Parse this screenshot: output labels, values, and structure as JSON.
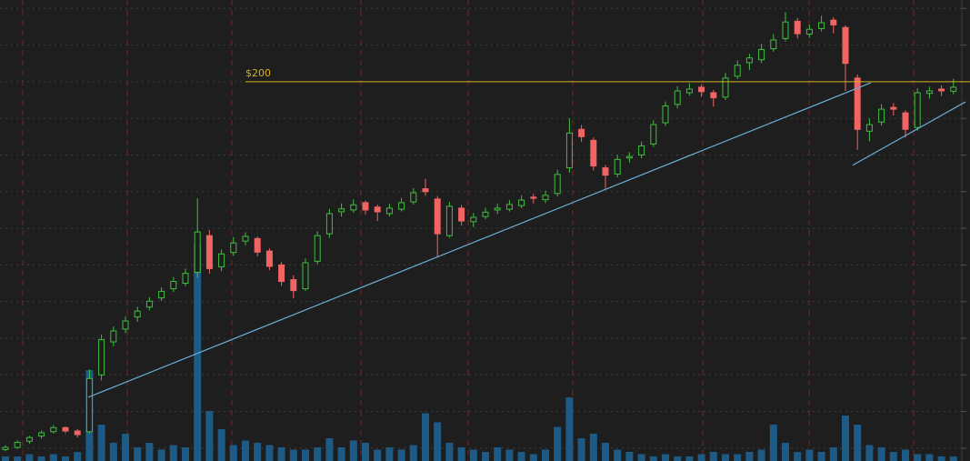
{
  "chart_data": {
    "type": "candlestick",
    "up_color": "#3fbf3f",
    "down_color": "#f06464",
    "volume_color": "#1d5a86",
    "ylim": [
      96.5,
      222.3
    ],
    "grid_lines": [
      100,
      110,
      120,
      130,
      140,
      150,
      160,
      170,
      180,
      190,
      200,
      210,
      220
    ],
    "volume_lim": [
      0,
      100
    ],
    "open": [
      99.6,
      100.2,
      101.9,
      103.3,
      104.5,
      105.6,
      104.7,
      104.5,
      120.0,
      129.0,
      132.5,
      135.8,
      138.5,
      141.0,
      143.5,
      145.0,
      148.0,
      158.0,
      149.5,
      153.4,
      156.5,
      157.2,
      153.8,
      150.0,
      146.0,
      143.5,
      151.0,
      158.5,
      164.5,
      165.0,
      167.0,
      165.8,
      164.0,
      165.2,
      167.2,
      170.8,
      168.0,
      158.0,
      165.5,
      161.8,
      163.2,
      165.0,
      165.2,
      166.2,
      168.5,
      167.8,
      169.5,
      176.5,
      187.0,
      184.0,
      176.5,
      174.8,
      179.2,
      180.0,
      183.0,
      188.8,
      193.8,
      197.0,
      198.5,
      197.0,
      195.8,
      201.5,
      205.2,
      206.0,
      209.0,
      211.8,
      216.5,
      213.0,
      214.5,
      216.8,
      214.8,
      201.0,
      186.5,
      189.0,
      193.0,
      191.5,
      187.5,
      196.8,
      198.0,
      197.4
    ],
    "high": [
      100.8,
      102.1,
      103.4,
      104.8,
      106.3,
      106.0,
      105.2,
      121.5,
      131.0,
      133.2,
      136.0,
      138.6,
      141.2,
      143.9,
      146.7,
      149.0,
      168.2,
      159.5,
      154.2,
      157.6,
      158.9,
      157.8,
      154.5,
      150.8,
      147.2,
      151.8,
      159.2,
      165.3,
      166.8,
      167.9,
      167.6,
      166.5,
      166.7,
      168.3,
      171.0,
      173.5,
      168.8,
      167.2,
      166.4,
      164.2,
      165.6,
      166.8,
      167.7,
      169.0,
      169.4,
      170.3,
      176.0,
      190.0,
      188.2,
      184.8,
      177.3,
      180.0,
      180.8,
      183.7,
      189.5,
      194.6,
      198.8,
      199.6,
      199.2,
      197.8,
      202.4,
      205.8,
      207.6,
      210.3,
      213.0,
      219.0,
      217.4,
      215.6,
      218.0,
      217.6,
      215.4,
      202.0,
      190.0,
      193.9,
      194.2,
      192.2,
      198.2,
      198.7,
      199.0,
      200.8
    ],
    "low": [
      99.2,
      99.8,
      101.2,
      102.6,
      104.0,
      104.1,
      102.9,
      104.0,
      118.5,
      127.8,
      131.4,
      134.5,
      137.6,
      140.2,
      142.6,
      144.2,
      146.5,
      147.6,
      148.3,
      152.5,
      155.4,
      152.4,
      148.6,
      144.3,
      140.9,
      142.8,
      150.2,
      157.4,
      163.2,
      164.3,
      163.8,
      162.0,
      163.2,
      164.6,
      166.5,
      168.9,
      152.0,
      157.4,
      160.8,
      160.3,
      162.5,
      163.9,
      164.6,
      165.5,
      166.8,
      167.0,
      168.7,
      175.2,
      183.6,
      175.8,
      170.8,
      173.9,
      177.9,
      179.1,
      182.2,
      187.9,
      192.7,
      196.2,
      195.9,
      193.2,
      195.0,
      200.7,
      203.2,
      205.1,
      208.2,
      211.0,
      211.8,
      212.0,
      213.7,
      213.2,
      197.5,
      181.4,
      183.8,
      188.0,
      190.8,
      184.8,
      186.6,
      195.4,
      196.1,
      196.6
    ],
    "close": [
      100.2,
      101.6,
      102.9,
      104.2,
      105.6,
      104.7,
      103.7,
      119.0,
      129.6,
      132.0,
      134.7,
      137.4,
      140.1,
      142.8,
      145.5,
      147.7,
      159.0,
      149.0,
      153.0,
      156.0,
      157.8,
      153.5,
      149.6,
      145.5,
      143.0,
      150.6,
      158.0,
      164.0,
      165.3,
      166.4,
      165.0,
      164.5,
      165.5,
      167.0,
      169.7,
      170.0,
      158.5,
      166.0,
      162.0,
      163.0,
      164.4,
      165.5,
      166.5,
      167.7,
      168.2,
      169.0,
      174.7,
      186.0,
      185.0,
      177.0,
      174.5,
      178.8,
      179.6,
      182.5,
      188.3,
      193.4,
      197.5,
      198.0,
      197.3,
      195.6,
      201.0,
      204.5,
      206.5,
      208.8,
      211.4,
      216.3,
      213.1,
      214.3,
      216.1,
      215.5,
      205.0,
      187.0,
      188.3,
      192.5,
      192.5,
      187.0,
      197.0,
      197.5,
      197.5,
      198.5
    ],
    "volume": [
      2,
      2,
      3,
      2,
      3,
      2,
      4,
      40,
      16,
      8,
      12,
      6,
      8,
      5,
      7,
      6,
      95,
      22,
      14,
      7,
      9,
      8,
      7,
      6,
      5,
      5,
      6,
      10,
      6,
      9,
      8,
      5,
      6,
      5,
      7,
      21,
      17,
      8,
      6,
      5,
      4,
      6,
      5,
      4,
      3,
      5,
      15,
      28,
      10,
      12,
      8,
      5,
      4,
      3,
      2,
      3,
      2,
      2,
      3,
      4,
      3,
      3,
      4,
      5,
      16,
      8,
      4,
      5,
      4,
      6,
      20,
      16,
      7,
      6,
      4,
      5,
      3,
      3,
      2,
      2
    ],
    "price_level": {
      "label": "$200",
      "value": 200,
      "start": 20,
      "color": "#d4b21c"
    },
    "trendlines": [
      {
        "color": "#6aaed6",
        "x": [
          6.9,
          72.1
        ],
        "y": [
          113.9,
          199.7
        ]
      },
      {
        "color": "#6aaed6",
        "x": [
          70.6,
          80
        ],
        "y": [
          177.2,
          194.5
        ]
      }
    ]
  }
}
